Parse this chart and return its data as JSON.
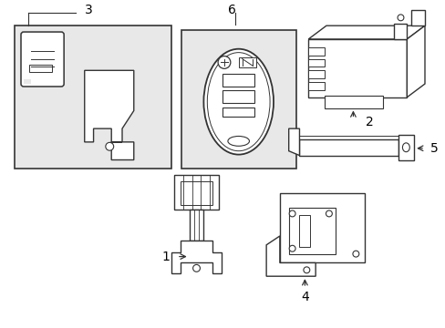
{
  "background_color": "#ffffff",
  "line_color": "#333333",
  "box3_fill": "#e8e8e8",
  "box6_fill": "#e8e8e8",
  "parts_labels": [
    "1",
    "2",
    "3",
    "4",
    "5",
    "6"
  ]
}
